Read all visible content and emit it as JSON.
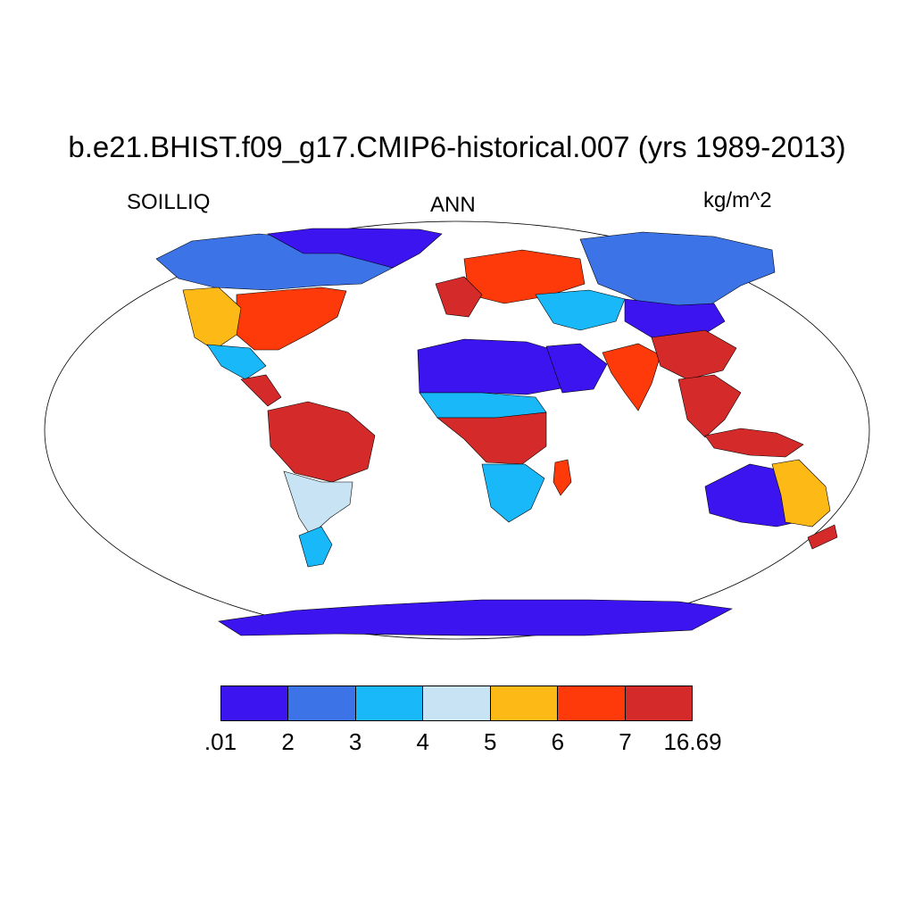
{
  "title": "b.e21.BHIST.f09_g17.CMIP6-historical.007 (yrs 1989-2013)",
  "left_label": "SOILLIQ",
  "center_label": "ANN",
  "right_label": "kg/m^2",
  "map": {
    "projection": "Robinson",
    "field": "SOILLIQ",
    "season": "ANN",
    "units": "kg/m^2",
    "regions": [
      {
        "name": "Canada-Alaska",
        "level": 1
      },
      {
        "name": "Greenland-coast",
        "level": 0
      },
      {
        "name": "Eastern-US",
        "level": 5
      },
      {
        "name": "Western-US",
        "level": 4
      },
      {
        "name": "Mexico",
        "level": 2
      },
      {
        "name": "Central-America",
        "level": 6
      },
      {
        "name": "Amazon",
        "level": 6
      },
      {
        "name": "Southern-South-America",
        "level": 3
      },
      {
        "name": "Patagonia",
        "level": 2
      },
      {
        "name": "Europe",
        "level": 5
      },
      {
        "name": "Western-Europe",
        "level": 6
      },
      {
        "name": "Sahara",
        "level": 0
      },
      {
        "name": "Arabia",
        "level": 0
      },
      {
        "name": "Sahel",
        "level": 2
      },
      {
        "name": "Central-Africa",
        "level": 6
      },
      {
        "name": "Southern-Africa",
        "level": 2
      },
      {
        "name": "Madagascar",
        "level": 5
      },
      {
        "name": "Siberia",
        "level": 1
      },
      {
        "name": "Central-Asia",
        "level": 2
      },
      {
        "name": "Mongolia",
        "level": 0
      },
      {
        "name": "India",
        "level": 5
      },
      {
        "name": "Southern-China",
        "level": 6
      },
      {
        "name": "Southeast-Asia",
        "level": 6
      },
      {
        "name": "Indonesia",
        "level": 6
      },
      {
        "name": "Australia-Interior",
        "level": 0
      },
      {
        "name": "Australia-Coast",
        "level": 4
      },
      {
        "name": "New-Zealand",
        "level": 6
      },
      {
        "name": "Antarctica-coast",
        "level": 0
      }
    ]
  },
  "colorbar": {
    "colors": [
      "#3b14f0",
      "#3c73e6",
      "#19b9f9",
      "#c8e4f4",
      "#fdba16",
      "#ff3a0a",
      "#d42a2a"
    ],
    "labels": [
      ".01",
      "2",
      "3",
      "4",
      "5",
      "6",
      "7",
      "16.69"
    ]
  }
}
